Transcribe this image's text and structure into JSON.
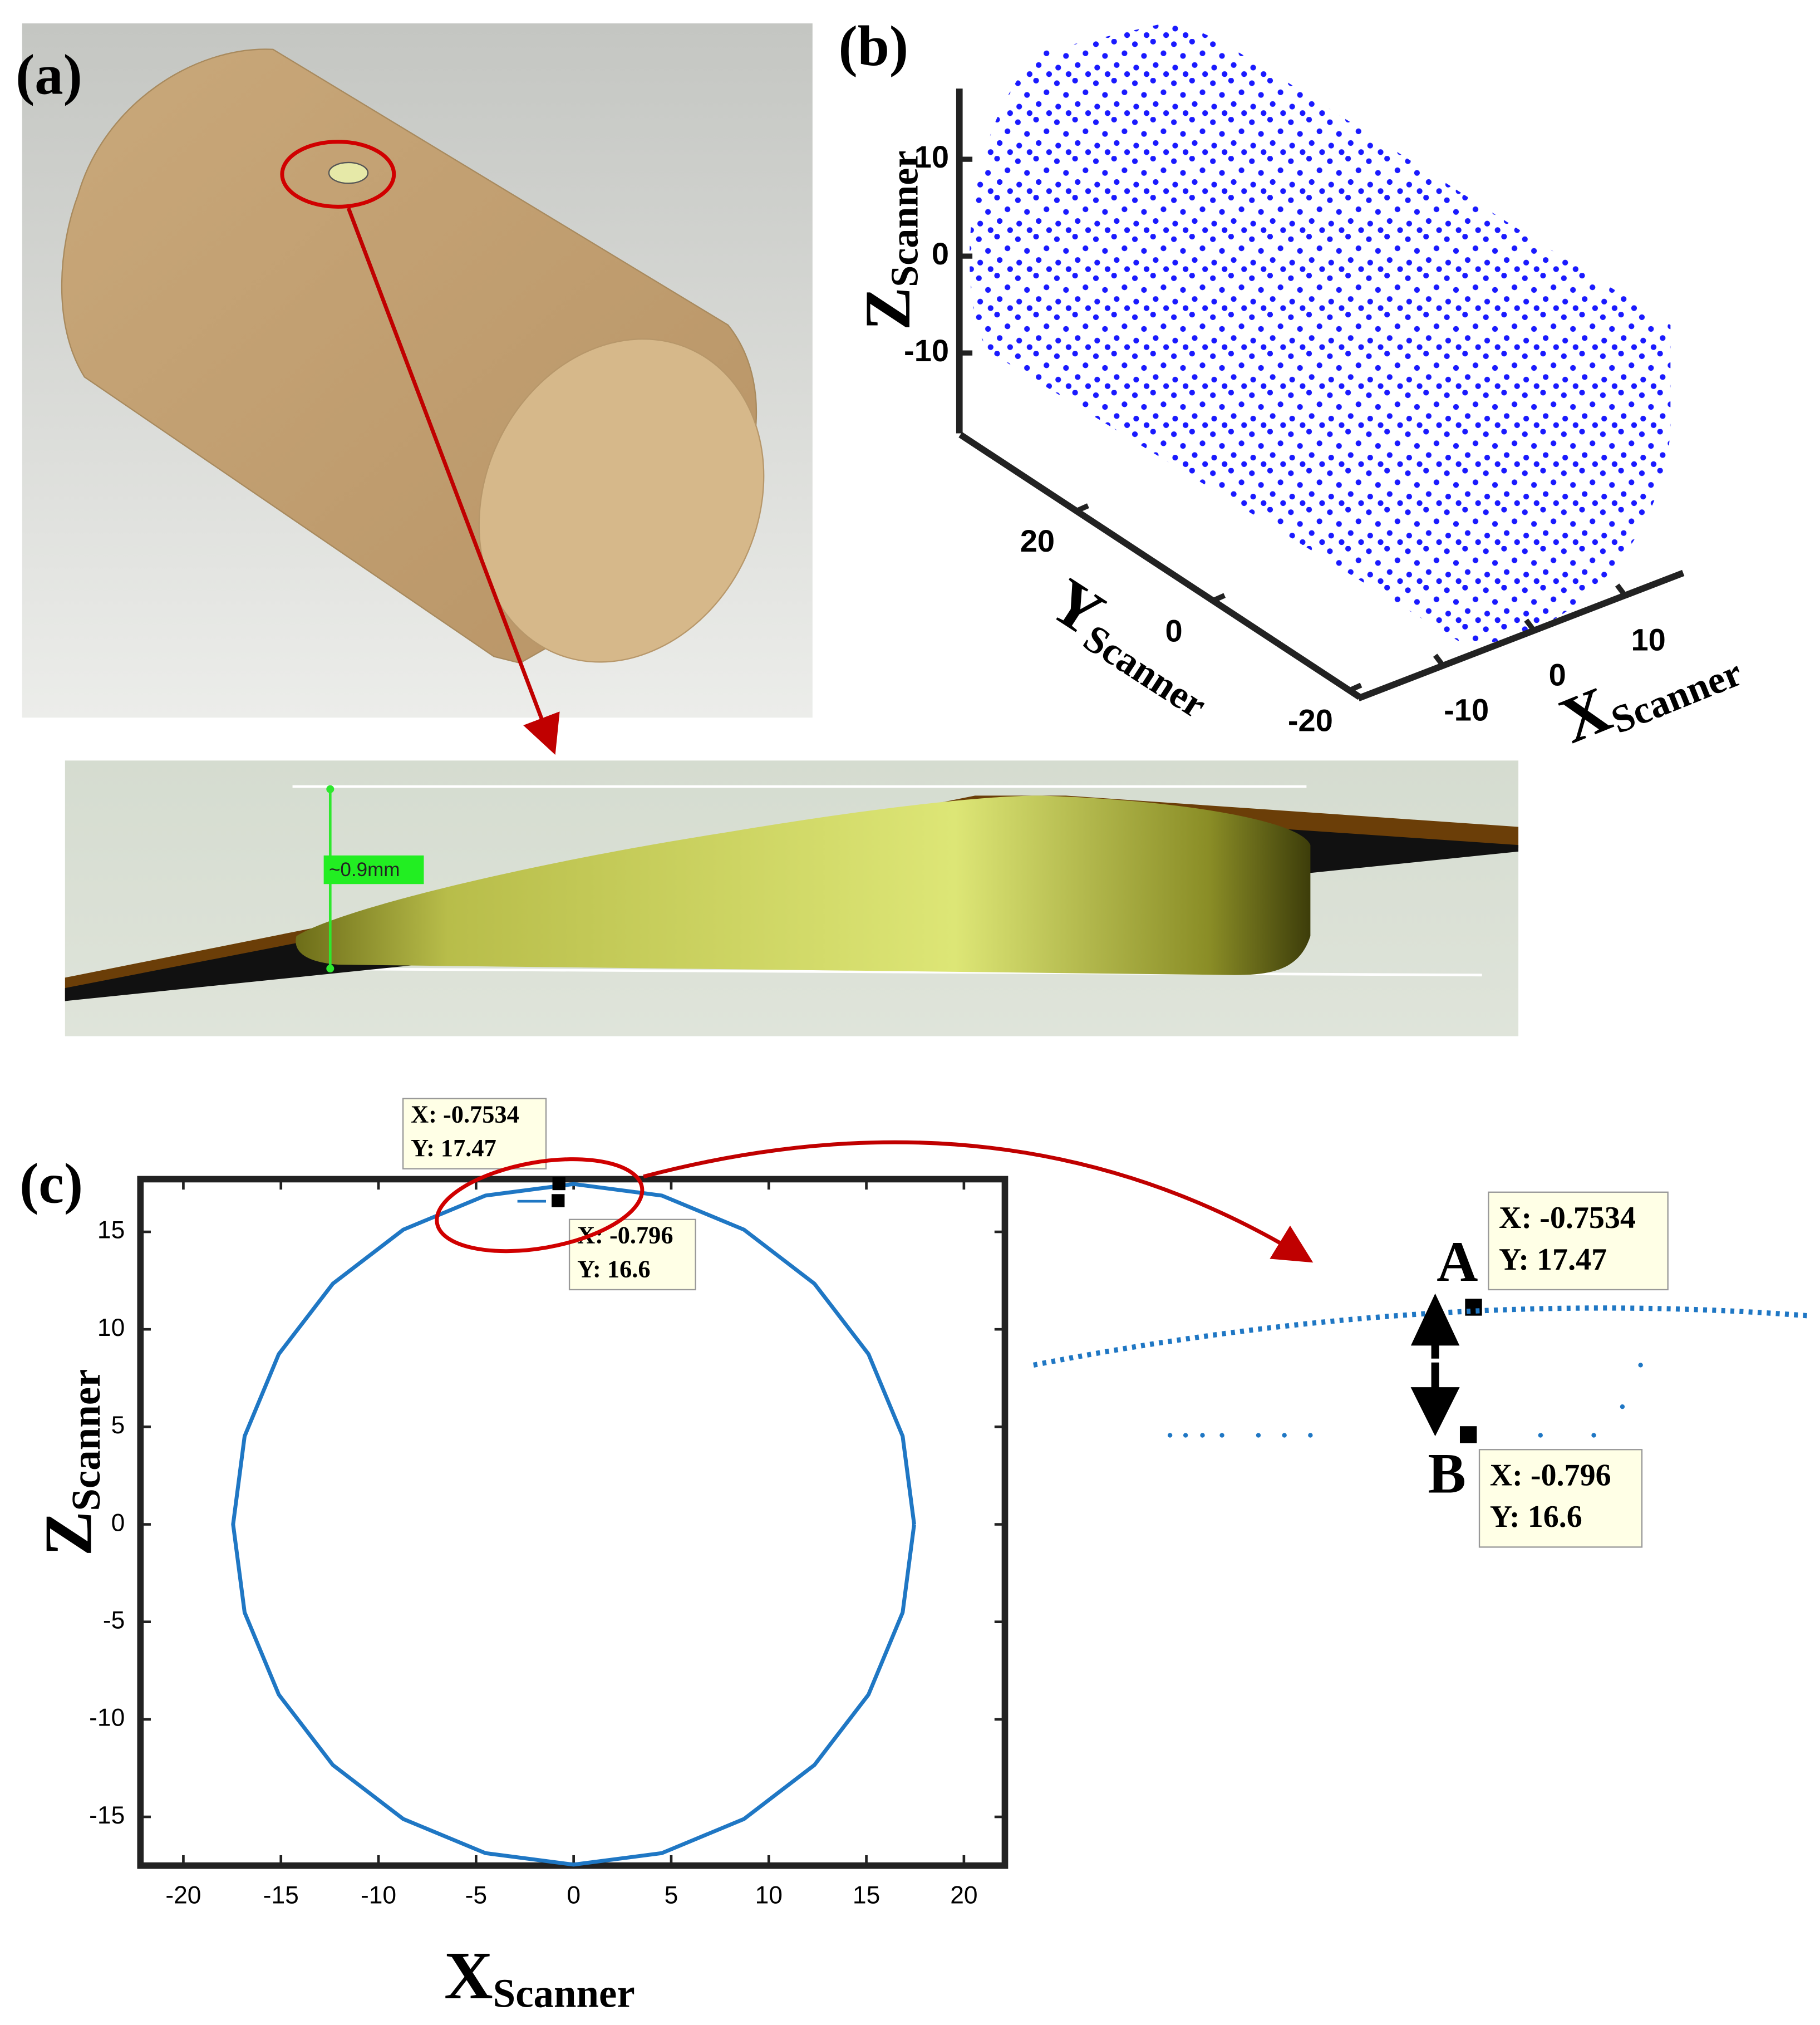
{
  "panel_a": {
    "label": "(a)",
    "dimension": "~0.9mm"
  },
  "chart_data": [
    {
      "type": "scatter3d",
      "panel_label": "(b)",
      "xlabel": {
        "main": "X",
        "sub": "Scanner"
      },
      "ylabel": {
        "main": "Y",
        "sub": "Scanner"
      },
      "zlabel": {
        "main": "Z",
        "sub": "Scanner"
      },
      "color": "#1a1aff",
      "xlim": [
        -19.3,
        16.4
      ],
      "xticks": [
        -10,
        0,
        10
      ],
      "ylim": [
        37,
        -21.5
      ],
      "yticks": [
        20,
        0,
        -20
      ],
      "zlim": [
        -18.3,
        17.3
      ],
      "zticks": [
        10,
        0,
        -10
      ]
    },
    {
      "type": "line",
      "panel_label": "(c)",
      "xlabel": {
        "main": "X",
        "sub": "Scanner"
      },
      "ylabel": {
        "main": "Z",
        "sub": "Scanner"
      },
      "xlim": [
        -22.2,
        22.1
      ],
      "xticks": [
        -20,
        -15,
        -10,
        -5,
        0,
        5,
        10,
        15,
        20
      ],
      "ylim": [
        -17.5,
        17.7
      ],
      "yticks": [
        -15,
        -10,
        -5,
        0,
        5,
        10,
        15
      ],
      "grid": false,
      "series": [
        {
          "color": "#1f77c4",
          "x": [
            17.45,
            16.86,
            15.11,
            12.34,
            8.73,
            4.52,
            0,
            -4.52,
            -8.73,
            -12.34,
            -15.11,
            -16.86,
            -17.45,
            -16.86,
            -15.11,
            -12.34,
            -8.73,
            -4.52,
            0,
            4.52,
            8.73,
            12.34,
            15.11,
            16.86,
            17.45
          ],
          "values": [
            0,
            4.52,
            8.73,
            12.34,
            15.11,
            16.86,
            17.45,
            16.86,
            15.11,
            12.34,
            8.73,
            4.52,
            0,
            -4.52,
            -8.73,
            -12.34,
            -15.11,
            -16.86,
            -17.45,
            -16.86,
            -15.11,
            -12.34,
            -8.73,
            -4.52,
            0
          ]
        }
      ],
      "datatips": [
        {
          "name": "A",
          "x": -0.7534,
          "y": 17.47,
          "x_label": "X: -0.7534",
          "y_label": "Y: 17.47"
        },
        {
          "name": "B",
          "x": -0.796,
          "y": 16.6,
          "x_label": "X: -0.796",
          "y_label": "Y: 16.6"
        }
      ]
    }
  ]
}
